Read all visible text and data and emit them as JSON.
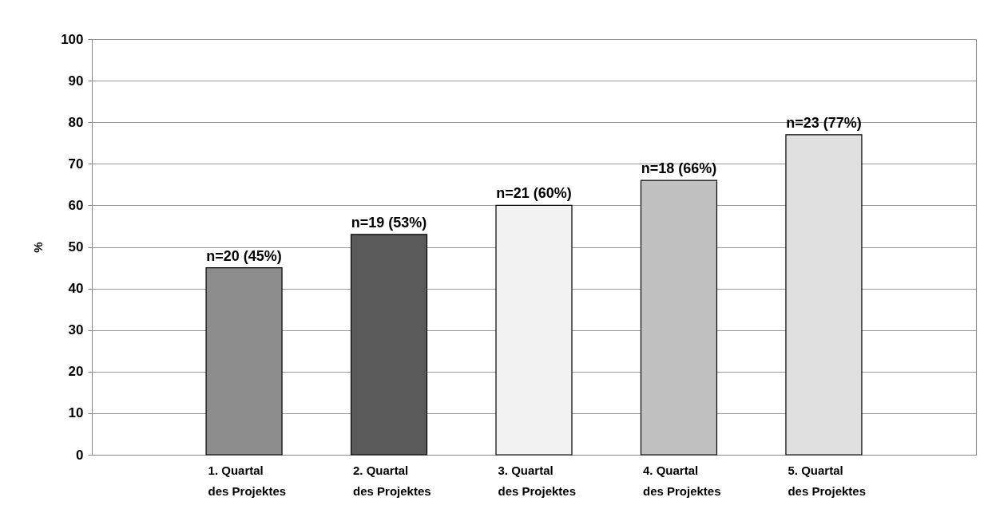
{
  "chart_data": {
    "type": "bar",
    "ylabel": "%",
    "categories": [
      "1. Quartal\ndes Projektes",
      "2. Quartal\ndes Projektes",
      "3. Quartal\ndes Projektes",
      "4. Quartal\ndes Projektes",
      "5. Quartal\ndes Projektes"
    ],
    "values": [
      45,
      53,
      60,
      66,
      77
    ],
    "colors": [
      "#8c8c8c",
      "#5a5a5a",
      "#f2f2f2",
      "#c0c0c0",
      "#e0e0e0"
    ],
    "value_labels": [
      "n=20 (45%)",
      "n=19 (53%)",
      "n=21 (60%)",
      "n=18 (66%)",
      "n=23 (77%)"
    ],
    "ylim": [
      0,
      100
    ],
    "yticks": [
      0,
      10,
      20,
      30,
      40,
      50,
      60,
      70,
      80,
      90,
      100
    ],
    "grid": "y"
  }
}
